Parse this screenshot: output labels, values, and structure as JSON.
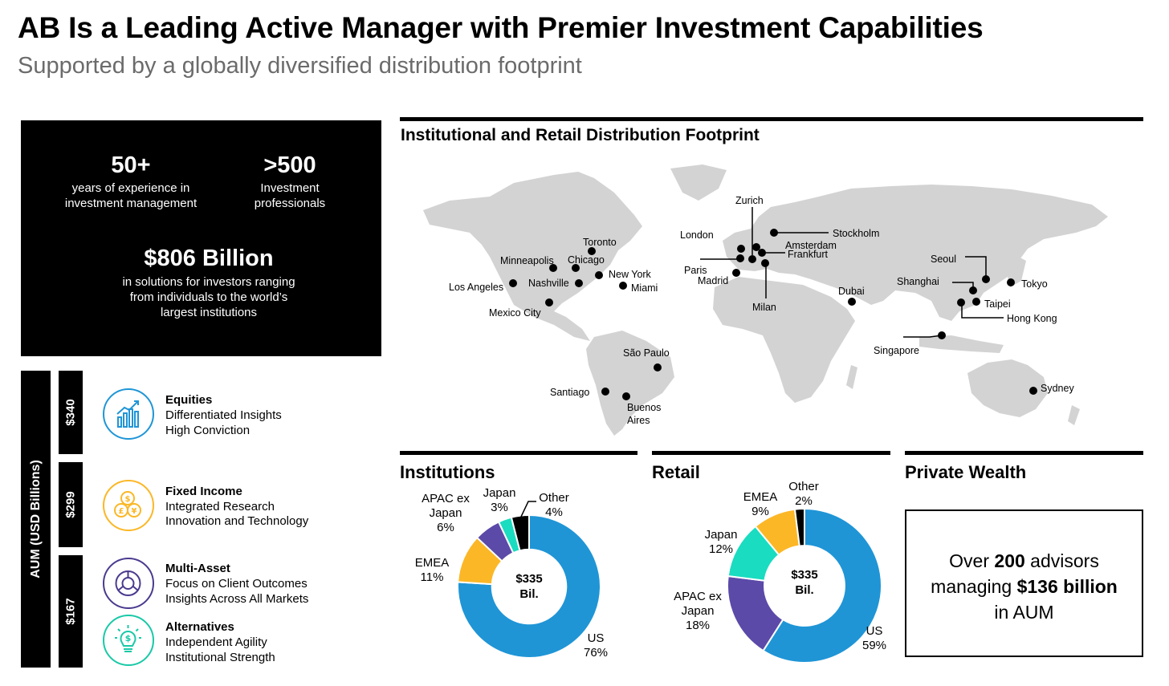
{
  "title": "AB Is a Leading Active Manager with Premier Investment Capabilities",
  "subtitle": "Supported by a globally diversified distribution footprint",
  "stats": {
    "years_value": "50+",
    "years_line1": "years of experience in",
    "years_line2": "investment management",
    "pros_value": ">500",
    "pros_line1": "Investment",
    "pros_line2": "professionals",
    "aum_value": "$806 Billion",
    "aum_line1": "in solutions for investors ranging",
    "aum_line2": "from individuals to the world’s",
    "aum_line3": "largest institutions"
  },
  "aum_axis_label": "AUM (USD Billions)",
  "aum_bars": [
    "$340",
    "$299",
    "$167"
  ],
  "capabilities": [
    {
      "title": "Equities",
      "line1": "Differentiated Insights",
      "line2": "High Conviction",
      "icon": "growth-chart-icon",
      "color": "#1f95d6"
    },
    {
      "title": "Fixed Income",
      "line1": "Integrated Research",
      "line2": "Innovation and Technology",
      "icon": "currency-coins-icon",
      "color": "#fbb726"
    },
    {
      "title": "Multi-Asset",
      "line1": "Focus on Client Outcomes",
      "line2": "Insights Across All Markets",
      "icon": "pie-segments-icon",
      "color": "#4b3a8f"
    },
    {
      "title": "Alternatives",
      "line1": "Independent Agility",
      "line2": "Institutional Strength",
      "icon": "dollar-bulb-icon",
      "color": "#19c9a7"
    }
  ],
  "map": {
    "title": "Institutional and Retail Distribution Footprint",
    "cities": [
      "Toronto",
      "Minneapolis",
      "Chicago",
      "New York",
      "Los Angeles",
      "Nashville",
      "Miami",
      "Mexico City",
      "São Paulo",
      "Santiago",
      "Buenos",
      "Aires",
      "Zurich",
      "London",
      "Stockholm",
      "Amsterdam",
      "Frankfurt",
      "Paris",
      "Madrid",
      "Milan",
      "Dubai",
      "Seoul",
      "Shanghai",
      "Tokyo",
      "Taipei",
      "Hong Kong",
      "Singapore",
      "Sydney"
    ]
  },
  "institutions": {
    "title": "Institutions",
    "center_line1": "$335",
    "center_line2": "Bil.",
    "labels": {
      "us_name": "US",
      "us_pct": "76%",
      "emea_name": "EMEA",
      "emea_pct": "11%",
      "apac_line1": "APAC ex",
      "apac_line2": "Japan",
      "apac_pct": "6%",
      "japan_name": "Japan",
      "japan_pct": "3%",
      "other_name": "Other",
      "other_pct": "4%"
    }
  },
  "retail": {
    "title": "Retail",
    "center_line1": "$335",
    "center_line2": "Bil.",
    "labels": {
      "us_name": "US",
      "us_pct": "59%",
      "apac_line1": "APAC ex",
      "apac_line2": "Japan",
      "apac_pct": "18%",
      "japan_name": "Japan",
      "japan_pct": "12%",
      "emea_name": "EMEA",
      "emea_pct": "9%",
      "other_name": "Other",
      "other_pct": "2%"
    }
  },
  "private_wealth": {
    "title": "Private Wealth",
    "line1_pre": "Over ",
    "line1_bold": "200",
    "line1_post": " advisors",
    "line2_pre": "managing ",
    "line2_bold": "$136 billion",
    "line3": "in AUM"
  },
  "chart_data": [
    {
      "type": "pie",
      "title": "Institutions",
      "categories": [
        "US",
        "EMEA",
        "APAC ex Japan",
        "Japan",
        "Other"
      ],
      "values": [
        76,
        11,
        6,
        3,
        4
      ],
      "colors": [
        "#1f95d6",
        "#fbb726",
        "#5b4aa8",
        "#19dcc0",
        "#000000"
      ]
    },
    {
      "type": "pie",
      "title": "Retail",
      "categories": [
        "US",
        "APAC ex Japan",
        "Japan",
        "EMEA",
        "Other"
      ],
      "values": [
        59,
        18,
        12,
        9,
        2
      ],
      "colors": [
        "#1f95d6",
        "#5b4aa8",
        "#19dcc0",
        "#fbb726",
        "#000000"
      ]
    }
  ]
}
